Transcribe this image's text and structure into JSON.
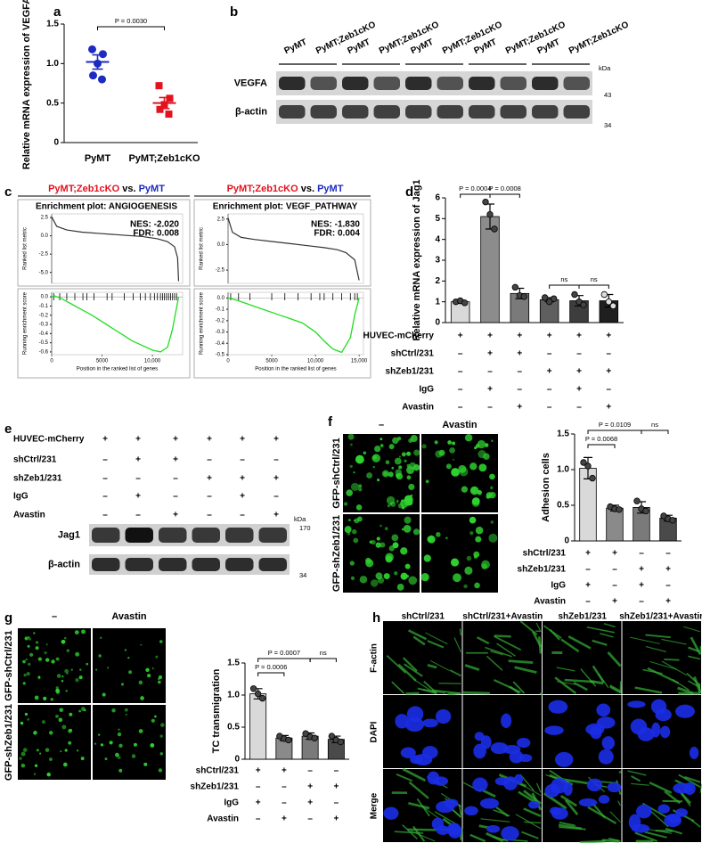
{
  "panel_labels": [
    "a",
    "b",
    "c",
    "d",
    "e",
    "f",
    "g",
    "h"
  ],
  "chart_data": [
    {
      "type": "dot",
      "y_label": "Relative mRNA expression of VEGFA",
      "categories": [
        "PyMT",
        "PyMT;Zeb1cKO"
      ],
      "colors": [
        "#1d2bc0",
        "#e3121f"
      ],
      "markers": [
        "circle",
        "square"
      ],
      "values": [
        1.02,
        0.5
      ],
      "errors": [
        0.09,
        0.07
      ],
      "points": [
        [
          1.18,
          1.12,
          1.0,
          0.85,
          0.8
        ],
        [
          0.72,
          0.56,
          0.48,
          0.42,
          0.36
        ]
      ],
      "ylim": [
        0,
        1.5
      ],
      "yticks": [
        0,
        0.5,
        {
          "value": 1,
          "label": "1.0"
        },
        1.5
      ],
      "annotations": [
        "P = 0.0030"
      ]
    },
    {
      "type": "gsea",
      "header": [
        "PyMT;Zeb1cKO",
        "vs.",
        "PyMT"
      ],
      "header_colors": [
        "#e3121f",
        "#000000",
        "#1d2bc0"
      ],
      "title": "Enrichment plot: ANGIOGENESIS",
      "stats": [
        "NES: -2.020",
        "FDR: 0.008"
      ],
      "metric_label": "Ranked list metric",
      "es_label": "Running enrichment score",
      "x_label": "Position in the ranked list of genes",
      "xlim": [
        0,
        13000
      ],
      "xticks": [
        0,
        5000,
        {
          "value": 10000,
          "label": "10,000"
        }
      ],
      "metric_ylim": [
        -6.5,
        3
      ],
      "metric_yticks": [
        2.5,
        {
          "value": 0,
          "label": "0.0"
        },
        -2.5,
        {
          "value": -5,
          "label": "-5.0"
        }
      ],
      "es_ylim": [
        -0.63,
        0.05
      ],
      "es_yticks": [
        {
          "value": 0,
          "label": "0.0"
        },
        -0.1,
        -0.2,
        -0.3,
        -0.4,
        -0.5,
        -0.6
      ],
      "metric_x": [
        0,
        500,
        1500,
        3000,
        5000,
        7000,
        9000,
        10500,
        11500,
        12200,
        12500,
        12600
      ],
      "metric": [
        2.6,
        1.3,
        0.8,
        0.5,
        0.3,
        0.1,
        -0.1,
        -0.4,
        -0.8,
        -1.5,
        -3,
        -6.2
      ],
      "es_x": [
        0,
        300,
        1000,
        2000,
        3000,
        4000,
        5000,
        6000,
        7000,
        8000,
        9000,
        10000,
        10800,
        11500,
        12000,
        12600
      ],
      "es": [
        0,
        0.01,
        -0.02,
        -0.08,
        -0.14,
        -0.2,
        -0.27,
        -0.34,
        -0.41,
        -0.48,
        -0.53,
        -0.58,
        -0.6,
        -0.55,
        -0.35,
        0
      ],
      "hits": [
        200,
        800,
        1500,
        2300,
        3100,
        3500,
        4200,
        5500,
        6000,
        7200,
        8100,
        8800,
        9300,
        9800,
        10200,
        10500,
        10800,
        11000,
        11200,
        11400,
        11600,
        11800,
        12000,
        12200,
        12400
      ],
      "line_color": "#22dd22"
    },
    {
      "type": "gsea",
      "header": [
        "PyMT;Zeb1cKO",
        "vs.",
        "PyMT"
      ],
      "header_colors": [
        "#e3121f",
        "#000000",
        "#1d2bc0"
      ],
      "title": "Enrichment plot: VEGF_PATHWAY",
      "stats": [
        "NES: -1.830",
        "FDR: 0.004"
      ],
      "metric_label": "Ranked list metric",
      "es_label": "Running enrichment score",
      "x_label": "Position in the ranked list of genes",
      "xlim": [
        0,
        15500
      ],
      "xticks": [
        0,
        5000,
        {
          "value": 10000,
          "label": "10,000"
        },
        {
          "value": 15000,
          "label": "15,000"
        }
      ],
      "metric_ylim": [
        -3.8,
        3
      ],
      "metric_yticks": [
        2.5,
        {
          "value": 0,
          "label": "0.0"
        },
        -2.5
      ],
      "es_ylim": [
        -0.5,
        0.05
      ],
      "es_yticks": [
        {
          "value": 0,
          "label": "0.0"
        },
        -0.1,
        -0.2,
        -0.3,
        -0.4,
        -0.5
      ],
      "metric_x": [
        0,
        500,
        1500,
        3000,
        5000,
        7000,
        9000,
        11000,
        12500,
        13500,
        14500,
        15000
      ],
      "metric": [
        2.6,
        1.2,
        0.7,
        0.5,
        0.3,
        0.1,
        -0.1,
        -0.3,
        -0.5,
        -0.8,
        -1.5,
        -3.5
      ],
      "es_x": [
        0,
        1000,
        2500,
        4000,
        5500,
        7000,
        8500,
        10000,
        11000,
        12000,
        13000,
        14000,
        14500,
        15000
      ],
      "es": [
        0,
        -0.02,
        -0.06,
        -0.1,
        -0.14,
        -0.18,
        -0.22,
        -0.3,
        -0.38,
        -0.45,
        -0.48,
        -0.35,
        -0.15,
        0
      ],
      "hits": [
        300,
        1200,
        2500,
        5000,
        6500,
        8000,
        9500,
        10500,
        11000,
        12000,
        13000,
        14000,
        14500,
        14800
      ],
      "line_color": "#22dd22"
    },
    {
      "type": "bar",
      "y_label": "Relative mRNA expression of Jag1",
      "colors": [
        "#d9d9d9",
        "#8c8c8c",
        "#7a7a7a",
        "#5f5f5f",
        "#3d3d3d",
        "#1f1f1f"
      ],
      "point_colors": [
        "#444444",
        "#444444",
        "#444444",
        "#444444",
        "#444444",
        "#dddddd"
      ],
      "values": [
        1.0,
        5.1,
        1.4,
        1.1,
        1.05,
        1.05
      ],
      "errors": [
        0.08,
        0.6,
        0.25,
        0.1,
        0.25,
        0.3
      ],
      "points": [
        [
          1.0,
          1.05,
          0.95
        ],
        [
          5.8,
          5.2,
          4.5
        ],
        [
          1.7,
          1.3,
          1.25
        ],
        [
          1.2,
          1.0,
          1.15
        ],
        [
          1.35,
          1.0,
          0.85
        ],
        [
          1.35,
          1.0,
          0.8
        ]
      ],
      "ylim": [
        0,
        6
      ],
      "yticks": [
        0,
        1,
        2,
        3,
        4,
        5,
        6
      ],
      "conditions": [
        {
          "name": "HUVEC-mCherry",
          "signs": [
            "+",
            "+",
            "+",
            "+",
            "+",
            "+"
          ]
        },
        {
          "name": "shCtrl/231",
          "signs": [
            "–",
            "+",
            "+",
            "–",
            "–",
            "–"
          ]
        },
        {
          "name": "shZeb1/231",
          "signs": [
            "–",
            "–",
            "–",
            "+",
            "+",
            "+"
          ]
        },
        {
          "name": "IgG",
          "signs": [
            "–",
            "+",
            "–",
            "–",
            "+",
            "–"
          ]
        },
        {
          "name": "Avastin",
          "signs": [
            "–",
            "–",
            "+",
            "–",
            "–",
            "+"
          ]
        }
      ],
      "annotations": [
        "P = 0.0004",
        "P = 0.0008",
        "ns",
        "ns"
      ]
    },
    {
      "type": "bar",
      "y_label": "Adhesion cells",
      "colors": [
        "#d9d9d9",
        "#8a8a8a",
        "#7a7a7a",
        "#4a4a4a"
      ],
      "point_colors": [
        "#444444",
        "#444444",
        "#444444",
        "#444444"
      ],
      "values": [
        1.02,
        0.46,
        0.47,
        0.32
      ],
      "errors": [
        0.15,
        0.04,
        0.08,
        0.04
      ],
      "points": [
        [
          1.1,
          1.05,
          0.88
        ],
        [
          0.48,
          0.45,
          0.44
        ],
        [
          0.56,
          0.45,
          0.42
        ],
        [
          0.35,
          0.31,
          0.29
        ]
      ],
      "ylim": [
        0,
        1.5
      ],
      "yticks": [
        0,
        0.5,
        {
          "value": 1,
          "label": "1.0"
        },
        1.5
      ],
      "conditions": [
        {
          "name": "shCtrl/231",
          "signs": [
            "+",
            "+",
            "–",
            "–"
          ]
        },
        {
          "name": "shZeb1/231",
          "signs": [
            "–",
            "–",
            "+",
            "+"
          ]
        },
        {
          "name": "IgG",
          "signs": [
            "+",
            "–",
            "+",
            "–"
          ]
        },
        {
          "name": "Avastin",
          "signs": [
            "–",
            "+",
            "–",
            "+"
          ]
        }
      ],
      "annotations": [
        "P = 0.0109",
        "P = 0.0068",
        "ns"
      ]
    },
    {
      "type": "bar",
      "y_label": "TC transmigration",
      "colors": [
        "#d9d9d9",
        "#8a8a8a",
        "#7a7a7a",
        "#4a4a4a"
      ],
      "point_colors": [
        "#444444",
        "#444444",
        "#444444",
        "#444444"
      ],
      "values": [
        1.02,
        0.33,
        0.36,
        0.31
      ],
      "errors": [
        0.08,
        0.04,
        0.05,
        0.05
      ],
      "points": [
        [
          1.1,
          1.02,
          0.95
        ],
        [
          0.36,
          0.32,
          0.3
        ],
        [
          0.4,
          0.35,
          0.33
        ],
        [
          0.36,
          0.3,
          0.27
        ]
      ],
      "ylim": [
        0,
        1.5
      ],
      "yticks": [
        0,
        0.5,
        {
          "value": 1,
          "label": "1.0"
        },
        1.5
      ],
      "conditions": [
        {
          "name": "shCtrl/231",
          "signs": [
            "+",
            "+",
            "–",
            "–"
          ]
        },
        {
          "name": "shZeb1/231",
          "signs": [
            "–",
            "–",
            "+",
            "+"
          ]
        },
        {
          "name": "IgG",
          "signs": [
            "+",
            "–",
            "+",
            "–"
          ]
        },
        {
          "name": "Avastin",
          "signs": [
            "–",
            "+",
            "–",
            "+"
          ]
        }
      ],
      "annotations": [
        "P = 0.0007",
        "P = 0.0006",
        "ns"
      ]
    }
  ],
  "blot_b": {
    "lanes": [
      "PyMT",
      "PyMT;Zeb1cKO",
      "PyMT",
      "PyMT;Zeb1cKO",
      "PyMT",
      "PyMT;Zeb1cKO",
      "PyMT",
      "PyMT;Zeb1cKO",
      "PyMT",
      "PyMT;Zeb1cKO"
    ],
    "lane_colors": [
      "#1d2bc0",
      "#e3121f",
      "#1d2bc0",
      "#e3121f",
      "#1d2bc0",
      "#e3121f",
      "#1d2bc0",
      "#e3121f",
      "#1d2bc0",
      "#e3121f"
    ],
    "rows": [
      "VEGFA",
      "β-actin"
    ],
    "unit": "kDa",
    "markers": [
      "43",
      "34"
    ]
  },
  "blot_e": {
    "conditions": [
      {
        "name": "HUVEC-mCherry",
        "signs": [
          "+",
          "+",
          "+",
          "+",
          "+",
          "+"
        ]
      },
      {
        "name": "shCtrl/231",
        "signs": [
          "–",
          "+",
          "+",
          "–",
          "–",
          "–"
        ]
      },
      {
        "name": "shZeb1/231",
        "signs": [
          "–",
          "–",
          "–",
          "+",
          "+",
          "+"
        ]
      },
      {
        "name": "IgG",
        "signs": [
          "–",
          "+",
          "–",
          "–",
          "+",
          "–"
        ]
      },
      {
        "name": "Avastin",
        "signs": [
          "–",
          "–",
          "+",
          "–",
          "–",
          "+"
        ]
      }
    ],
    "rows": [
      "Jag1",
      "β-actin"
    ],
    "unit": "kDa",
    "markers": [
      "170",
      "34"
    ]
  },
  "images_f": {
    "columns": [
      "–",
      "Avastin"
    ],
    "rows": [
      "GFP-shCtrl/231",
      "GFP-shZeb1/231"
    ]
  },
  "images_g": {
    "columns": [
      "–",
      "Avastin"
    ],
    "rows": [
      "GFP-shCtrl/231",
      "GFP-shZeb1/231"
    ]
  },
  "images_h": {
    "columns": [
      "shCtrl/231",
      "shCtrl/231+Avastin",
      "shZeb1/231",
      "shZeb1/231+Avastin"
    ],
    "rows": [
      "F-actin",
      "DAPI",
      "Merge"
    ]
  }
}
